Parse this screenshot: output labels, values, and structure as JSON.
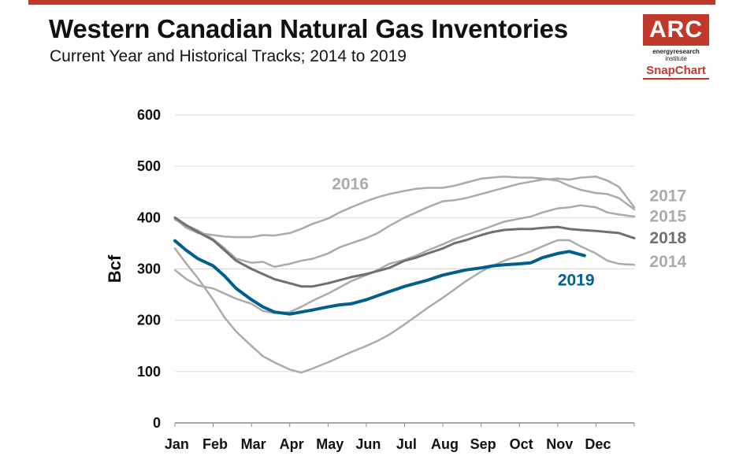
{
  "header": {
    "title": "Western Canadian Natural Gas Inventories",
    "subtitle": "Current Year and Historical Tracks; 2014 to 2019"
  },
  "logo": {
    "main": "ARC",
    "line1": "energyresearch",
    "line2": "institute",
    "snap": "SnapChart"
  },
  "colors": {
    "accent": "#c0392b",
    "current": "#005f8f",
    "dark_gray": "#707070",
    "light_gray": "#ababab",
    "grid": "#d9d9d9"
  },
  "chart_data": {
    "type": "line",
    "title": "Western Canadian Natural Gas Inventories",
    "subtitle": "Current Year and Historical Tracks; 2014 to 2019",
    "ylabel": "Bcf",
    "xlabel": "",
    "ylim": [
      0,
      600
    ],
    "yticks": [
      0,
      100,
      200,
      300,
      400,
      500,
      600
    ],
    "categories": [
      "Jan",
      "Feb",
      "Mar",
      "Apr",
      "May",
      "Jun",
      "Jul",
      "Aug",
      "Sep",
      "Oct",
      "Nov",
      "Dec"
    ],
    "x_unit": "month index (Jan=0 ... Dec end=12)",
    "grid": true,
    "series": [
      {
        "name": "2014",
        "color": "#ababab",
        "width": 2.5,
        "points": [
          [
            0,
            298
          ],
          [
            0.3,
            280
          ],
          [
            0.6,
            268
          ],
          [
            1,
            262
          ],
          [
            1.3,
            252
          ],
          [
            1.6,
            242
          ],
          [
            2,
            232
          ],
          [
            2.3,
            218
          ],
          [
            2.6,
            214
          ],
          [
            3,
            216
          ],
          [
            3.3,
            226
          ],
          [
            3.6,
            238
          ],
          [
            4,
            252
          ],
          [
            4.3,
            264
          ],
          [
            4.6,
            276
          ],
          [
            5,
            288
          ],
          [
            5.3,
            298
          ],
          [
            5.6,
            310
          ],
          [
            6,
            318
          ],
          [
            6.3,
            326
          ],
          [
            6.6,
            336
          ],
          [
            7,
            348
          ],
          [
            7.3,
            358
          ],
          [
            7.6,
            366
          ],
          [
            8,
            376
          ],
          [
            8.3,
            384
          ],
          [
            8.6,
            392
          ],
          [
            9,
            398
          ],
          [
            9.3,
            402
          ],
          [
            9.6,
            410
          ],
          [
            10,
            418
          ],
          [
            10.3,
            420
          ],
          [
            10.6,
            424
          ],
          [
            11,
            420
          ],
          [
            11.3,
            410
          ],
          [
            11.6,
            406
          ],
          [
            12,
            402
          ]
        ]
      },
      {
        "name": "2015",
        "color": "#ababab",
        "width": 2.5,
        "points": [
          [
            0,
            340
          ],
          [
            0.3,
            310
          ],
          [
            0.6,
            282
          ],
          [
            1,
            240
          ],
          [
            1.3,
            205
          ],
          [
            1.6,
            178
          ],
          [
            2,
            150
          ],
          [
            2.3,
            130
          ],
          [
            2.6,
            118
          ],
          [
            3,
            104
          ],
          [
            3.3,
            98
          ],
          [
            3.6,
            106
          ],
          [
            4,
            118
          ],
          [
            4.3,
            128
          ],
          [
            4.6,
            138
          ],
          [
            5,
            150
          ],
          [
            5.3,
            160
          ],
          [
            5.6,
            172
          ],
          [
            6,
            192
          ],
          [
            6.3,
            208
          ],
          [
            6.6,
            224
          ],
          [
            7,
            244
          ],
          [
            7.3,
            260
          ],
          [
            7.6,
            276
          ],
          [
            8,
            295
          ],
          [
            8.3,
            306
          ],
          [
            8.6,
            316
          ],
          [
            9,
            326
          ],
          [
            9.3,
            334
          ],
          [
            9.6,
            344
          ],
          [
            10,
            356
          ],
          [
            10.3,
            356
          ],
          [
            10.6,
            344
          ],
          [
            11,
            330
          ],
          [
            11.3,
            316
          ],
          [
            11.6,
            310
          ],
          [
            12,
            308
          ]
        ]
      },
      {
        "name": "2016",
        "color": "#ababab",
        "width": 2.5,
        "points": [
          [
            0,
            398
          ],
          [
            0.3,
            380
          ],
          [
            0.6,
            370
          ],
          [
            1,
            366
          ],
          [
            1.3,
            363
          ],
          [
            1.6,
            362
          ],
          [
            2,
            362
          ],
          [
            2.3,
            366
          ],
          [
            2.6,
            365
          ],
          [
            3,
            370
          ],
          [
            3.3,
            378
          ],
          [
            3.6,
            388
          ],
          [
            4,
            398
          ],
          [
            4.3,
            410
          ],
          [
            4.6,
            420
          ],
          [
            5,
            432
          ],
          [
            5.3,
            440
          ],
          [
            5.6,
            446
          ],
          [
            6,
            452
          ],
          [
            6.3,
            456
          ],
          [
            6.6,
            458
          ],
          [
            7,
            458
          ],
          [
            7.3,
            462
          ],
          [
            7.6,
            468
          ],
          [
            8,
            476
          ],
          [
            8.3,
            478
          ],
          [
            8.6,
            480
          ],
          [
            9,
            478
          ],
          [
            9.3,
            478
          ],
          [
            9.6,
            476
          ],
          [
            10,
            472
          ],
          [
            10.3,
            462
          ],
          [
            10.6,
            454
          ],
          [
            11,
            448
          ],
          [
            11.3,
            446
          ],
          [
            11.6,
            438
          ],
          [
            12,
            416
          ]
        ]
      },
      {
        "name": "2017",
        "color": "#ababab",
        "width": 2.5,
        "points": [
          [
            0,
            396
          ],
          [
            0.3,
            385
          ],
          [
            0.6,
            375
          ],
          [
            1,
            358
          ],
          [
            1.3,
            340
          ],
          [
            1.6,
            320
          ],
          [
            2,
            312
          ],
          [
            2.3,
            314
          ],
          [
            2.6,
            304
          ],
          [
            3,
            310
          ],
          [
            3.3,
            316
          ],
          [
            3.6,
            320
          ],
          [
            4,
            330
          ],
          [
            4.3,
            342
          ],
          [
            4.6,
            350
          ],
          [
            5,
            360
          ],
          [
            5.3,
            370
          ],
          [
            5.6,
            384
          ],
          [
            6,
            400
          ],
          [
            6.3,
            410
          ],
          [
            6.6,
            420
          ],
          [
            7,
            432
          ],
          [
            7.3,
            434
          ],
          [
            7.6,
            438
          ],
          [
            8,
            446
          ],
          [
            8.3,
            452
          ],
          [
            8.6,
            458
          ],
          [
            9,
            466
          ],
          [
            9.3,
            470
          ],
          [
            9.6,
            474
          ],
          [
            10,
            476
          ],
          [
            10.3,
            474
          ],
          [
            10.6,
            478
          ],
          [
            11,
            480
          ],
          [
            11.3,
            472
          ],
          [
            11.6,
            460
          ],
          [
            12,
            420
          ]
        ]
      },
      {
        "name": "2018",
        "color": "#707070",
        "width": 3,
        "points": [
          [
            0,
            400
          ],
          [
            0.3,
            385
          ],
          [
            0.6,
            372
          ],
          [
            1,
            356
          ],
          [
            1.3,
            336
          ],
          [
            1.6,
            316
          ],
          [
            2,
            300
          ],
          [
            2.3,
            290
          ],
          [
            2.6,
            280
          ],
          [
            3,
            272
          ],
          [
            3.3,
            266
          ],
          [
            3.6,
            266
          ],
          [
            4,
            272
          ],
          [
            4.3,
            278
          ],
          [
            4.6,
            284
          ],
          [
            5,
            290
          ],
          [
            5.3,
            296
          ],
          [
            5.6,
            302
          ],
          [
            6,
            316
          ],
          [
            6.3,
            322
          ],
          [
            6.6,
            330
          ],
          [
            7,
            340
          ],
          [
            7.3,
            350
          ],
          [
            7.6,
            356
          ],
          [
            8,
            366
          ],
          [
            8.3,
            372
          ],
          [
            8.6,
            376
          ],
          [
            9,
            378
          ],
          [
            9.3,
            378
          ],
          [
            9.6,
            380
          ],
          [
            10,
            382
          ],
          [
            10.3,
            378
          ],
          [
            10.6,
            376
          ],
          [
            11,
            374
          ],
          [
            11.3,
            372
          ],
          [
            11.6,
            370
          ],
          [
            12,
            360
          ]
        ]
      },
      {
        "name": "2019",
        "color": "#005f8f",
        "width": 4,
        "points": [
          [
            0,
            355
          ],
          [
            0.3,
            336
          ],
          [
            0.6,
            320
          ],
          [
            1,
            306
          ],
          [
            1.3,
            286
          ],
          [
            1.6,
            262
          ],
          [
            2,
            240
          ],
          [
            2.3,
            226
          ],
          [
            2.6,
            216
          ],
          [
            3,
            212
          ],
          [
            3.3,
            216
          ],
          [
            3.6,
            220
          ],
          [
            4,
            226
          ],
          [
            4.3,
            230
          ],
          [
            4.6,
            232
          ],
          [
            5,
            240
          ],
          [
            5.3,
            248
          ],
          [
            5.6,
            256
          ],
          [
            6,
            266
          ],
          [
            6.3,
            272
          ],
          [
            6.6,
            278
          ],
          [
            7,
            288
          ],
          [
            7.3,
            293
          ],
          [
            7.6,
            298
          ],
          [
            8,
            302
          ],
          [
            8.3,
            306
          ],
          [
            8.6,
            308
          ],
          [
            9,
            310
          ],
          [
            9.3,
            312
          ],
          [
            9.6,
            322
          ],
          [
            10,
            330
          ],
          [
            10.3,
            334
          ],
          [
            10.6,
            328
          ],
          [
            10.7,
            326
          ]
        ]
      }
    ],
    "annotations": [
      {
        "text": "2016",
        "color": "#ababab",
        "x": 4.1,
        "y": 455
      },
      {
        "text": "2017",
        "color": "#ababab",
        "x": 12.4,
        "y": 432
      },
      {
        "text": "2015",
        "color": "#ababab",
        "x": 12.4,
        "y": 392
      },
      {
        "text": "2018",
        "color": "#707070",
        "x": 12.4,
        "y": 350
      },
      {
        "text": "2014",
        "color": "#ababab",
        "x": 12.4,
        "y": 304
      },
      {
        "text": "2019",
        "color": "#005f8f",
        "x": 10.0,
        "y": 268
      }
    ]
  }
}
